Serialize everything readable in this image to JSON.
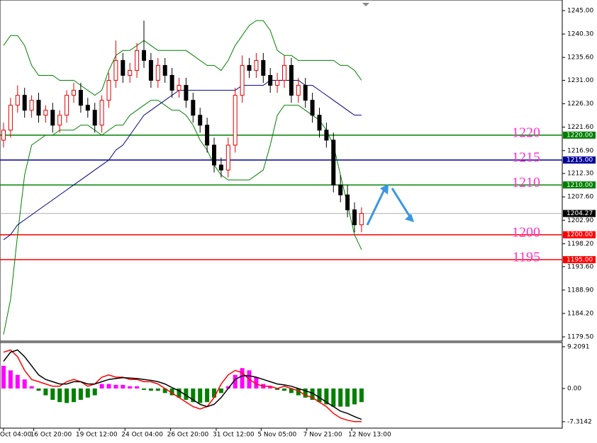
{
  "chart_data": [
    {
      "type": "candlestick",
      "ylim": [
        1178.65,
        1246.42
      ],
      "yticks": [
        {
          "value": 1245,
          "label": "1245.00"
        },
        {
          "value": 1240.3,
          "label": "1240.30"
        },
        {
          "value": 1235.6,
          "label": "1235.60"
        },
        {
          "value": 1231,
          "label": "1231.00"
        },
        {
          "value": 1226.3,
          "label": "1226.30"
        },
        {
          "value": 1221.6,
          "label": "1221.60"
        },
        {
          "value": 1216.9,
          "label": "1216.90"
        },
        {
          "value": 1212.3,
          "label": "1212.30"
        },
        {
          "value": 1207.6,
          "label": "1207.60"
        },
        {
          "value": 1202.9,
          "label": "1202.90"
        },
        {
          "value": 1198.2,
          "label": "1198.20"
        },
        {
          "value": 1193.6,
          "label": "1193.60"
        },
        {
          "value": 1188.9,
          "label": "1188.90"
        },
        {
          "value": 1184.2,
          "label": "1184.20"
        },
        {
          "value": 1179.5,
          "label": "1179.50"
        }
      ],
      "up_color": "#e00000",
      "down_color": "#000000",
      "open": [
        1219,
        1221,
        1226,
        1228,
        1225,
        1227,
        1224,
        1225,
        1222,
        1224,
        1228,
        1229,
        1226,
        1225,
        1222,
        1227,
        1231,
        1235,
        1232,
        1233,
        1237,
        1235,
        1231,
        1234,
        1232,
        1229,
        1230,
        1227,
        1224,
        1222,
        1218,
        1214,
        1213,
        1218,
        1228,
        1234,
        1233,
        1235,
        1232,
        1230,
        1231,
        1234,
        1228,
        1230,
        1227,
        1224,
        1221,
        1219,
        1210,
        1208,
        1205,
        1202
      ],
      "high": [
        1222.5,
        1227.5,
        1230,
        1229.5,
        1228,
        1228.5,
        1226,
        1226.5,
        1225,
        1229,
        1230.5,
        1230.5,
        1227.5,
        1226.5,
        1228,
        1232.5,
        1239,
        1236.5,
        1234.5,
        1238.5,
        1243,
        1236.5,
        1235.5,
        1235.5,
        1233.5,
        1231.5,
        1231.5,
        1228.5,
        1225.5,
        1223.5,
        1219.5,
        1215.5,
        1219.5,
        1229.5,
        1236,
        1235.5,
        1236.5,
        1236.5,
        1233.5,
        1232.5,
        1236,
        1235.5,
        1231.5,
        1231.5,
        1228.5,
        1225.5,
        1222.5,
        1220.5,
        1212,
        1210,
        1206.5,
        1205.5
      ],
      "low": [
        1217.5,
        1219.5,
        1224.5,
        1223.5,
        1223.5,
        1222.5,
        1222.5,
        1220.5,
        1220.5,
        1222.5,
        1226.5,
        1224.5,
        1223.5,
        1220.5,
        1220.5,
        1225.5,
        1229.5,
        1230.5,
        1230.5,
        1231.5,
        1233.5,
        1229.5,
        1229.5,
        1230.5,
        1227.5,
        1227.5,
        1225.5,
        1222.5,
        1220.5,
        1216.5,
        1212.5,
        1211.5,
        1211.5,
        1216.5,
        1226.5,
        1231.5,
        1231.5,
        1230.5,
        1228.5,
        1228.5,
        1229.5,
        1226.5,
        1226.5,
        1225.5,
        1222.5,
        1219.5,
        1217.5,
        1208.5,
        1206.5,
        1203.5,
        1200.5,
        1200.5
      ],
      "close": [
        1221,
        1226,
        1228,
        1225,
        1227,
        1224,
        1225,
        1222,
        1224,
        1228,
        1229,
        1226,
        1225,
        1222,
        1227,
        1231,
        1235,
        1232,
        1233,
        1237,
        1235,
        1231,
        1234,
        1232,
        1229,
        1230,
        1227,
        1224,
        1222,
        1218,
        1214,
        1213,
        1218,
        1228,
        1234,
        1233,
        1235,
        1232,
        1230,
        1231,
        1234,
        1228,
        1230,
        1227,
        1224,
        1221,
        1219,
        1210,
        1208,
        1205,
        1202,
        1204.27
      ],
      "series": [
        {
          "color": "#008000",
          "values": [
            1238,
            1240,
            1240,
            1238,
            1234,
            1232,
            1232,
            1232,
            1231,
            1231,
            1231,
            1230,
            1229,
            1228,
            1229,
            1233,
            1236,
            1237,
            1237,
            1238,
            1239,
            1238,
            1237,
            1237,
            1237,
            1237,
            1237,
            1236,
            1235,
            1234,
            1234,
            1233,
            1235,
            1238,
            1240,
            1242,
            1243,
            1243,
            1241,
            1237,
            1236,
            1236,
            1235,
            1235,
            1235,
            1235,
            1235,
            1235,
            1234,
            1234,
            1233,
            1231
          ]
        },
        {
          "color": "#008000",
          "values": [
            1180,
            1187,
            1200,
            1212,
            1218,
            1219,
            1220,
            1220,
            1221,
            1221,
            1221,
            1222,
            1222,
            1221,
            1220,
            1221,
            1222,
            1222,
            1224,
            1225,
            1226,
            1227,
            1227,
            1226,
            1225,
            1225,
            1224,
            1222,
            1219,
            1217,
            1214,
            1212,
            1211,
            1211,
            1211,
            1211,
            1212,
            1213,
            1218,
            1224,
            1226,
            1226,
            1226,
            1225,
            1224,
            1223,
            1221,
            1218,
            1212,
            1206,
            1200,
            1197
          ]
        },
        {
          "color": "#000080",
          "values": [
            1199,
            1200,
            1202,
            1203,
            1204,
            1205,
            1206,
            1207,
            1208,
            1209,
            1210,
            1211,
            1212,
            1213,
            1214,
            1215,
            1217,
            1218,
            1220,
            1222,
            1224,
            1225,
            1226,
            1227,
            1228,
            1229,
            1229,
            1229,
            1229,
            1229,
            1229,
            1229,
            1229,
            1229,
            1230,
            1230,
            1230,
            1230,
            1231,
            1231,
            1231,
            1231,
            1231,
            1230,
            1230,
            1229,
            1228,
            1227,
            1226,
            1225,
            1224,
            1224
          ]
        }
      ],
      "levels": [
        {
          "value": 1220,
          "label": "1220.00",
          "annotation": "1220",
          "color": "#008000"
        },
        {
          "value": 1215,
          "label": "1215.00",
          "annotation": "1215",
          "color": "#000099"
        },
        {
          "value": 1210,
          "label": "1210.00",
          "annotation": "1210",
          "color": "#008000"
        },
        {
          "value": 1200,
          "label": "1200.00",
          "annotation": "1200",
          "color": "#ff0000"
        },
        {
          "value": 1195,
          "label": "1195.00",
          "annotation": "1195",
          "color": "#ff0000"
        }
      ],
      "last_price": 1204.27
    },
    {
      "type": "bar",
      "ylim": [
        -8.74,
        10.14
      ],
      "yticks": [
        9.2091,
        {
          "value": 0,
          "label": "0.00"
        },
        -7.3142
      ],
      "pos_color": "#ff00ff",
      "neg_color": "#008000",
      "values": [
        5,
        4,
        3,
        2,
        0.5,
        -0.5,
        -1.5,
        -2.5,
        -3,
        -3.2,
        -3,
        -2.5,
        -2,
        -1.5,
        1,
        1,
        0.8,
        0.8,
        0.5,
        0.5,
        -0.3,
        -0.5,
        -0.5,
        -1,
        -1.5,
        -2,
        -2.5,
        -3,
        -3.2,
        -3,
        -2,
        -1,
        0.5,
        3,
        4.5,
        4,
        2.5,
        1,
        0.5,
        -0.3,
        -0.5,
        -1,
        -1.5,
        -2,
        -2.5,
        -3,
        -3.5,
        -4,
        -4,
        -4,
        -3.5,
        -3
      ],
      "series": [
        {
          "color": "#ff0000",
          "values": [
            8,
            8.5,
            7,
            4,
            2,
            1.5,
            1,
            0.5,
            0.5,
            1.5,
            2,
            1.5,
            0.5,
            1,
            2.5,
            3,
            2.5,
            2.5,
            2,
            2,
            1.5,
            1.5,
            1,
            0,
            -1,
            -2,
            -3,
            -4,
            -4.5,
            -4,
            -2,
            1,
            3,
            4,
            3.5,
            2,
            1,
            0.5,
            0.5,
            0,
            0.5,
            0,
            -0.5,
            -1.5,
            -2,
            -3,
            -4,
            -5.5,
            -6.5,
            -7,
            -7.3,
            -7.3
          ]
        },
        {
          "color": "#000000",
          "values": [
            6,
            8,
            8.5,
            7,
            5,
            3,
            2,
            1.5,
            1,
            1,
            1.5,
            1.5,
            1,
            1,
            1.5,
            2,
            2.2,
            2.4,
            2.3,
            2.2,
            2,
            1.8,
            1.5,
            1,
            0.2,
            -0.5,
            -1.5,
            -2.5,
            -3.5,
            -4,
            -3.5,
            -2,
            0,
            2,
            2.8,
            2.8,
            2.5,
            2,
            1.5,
            1,
            0.8,
            0.5,
            0,
            -0.5,
            -1,
            -2,
            -3,
            -4,
            -5,
            -5.5,
            -6.2,
            -6.8
          ]
        }
      ],
      "xticks": [
        {
          "value": 0,
          "label": "Oct 04:00"
        },
        {
          "value": 4.3,
          "label": "16 Oct 20:00"
        },
        {
          "value": 10.8,
          "label": "19 Oct 12:00"
        },
        {
          "value": 17.3,
          "label": "24 Oct 04:00"
        },
        {
          "value": 23.8,
          "label": "26 Oct 20:00"
        },
        {
          "value": 30.3,
          "label": "31 Oct 12:00"
        },
        {
          "value": 36.7,
          "label": "5 Nov 05:00"
        },
        {
          "value": 43.2,
          "label": "7 Nov 21:00"
        },
        {
          "value": 49.6,
          "label": "12 Nov 13:00"
        }
      ]
    }
  ]
}
